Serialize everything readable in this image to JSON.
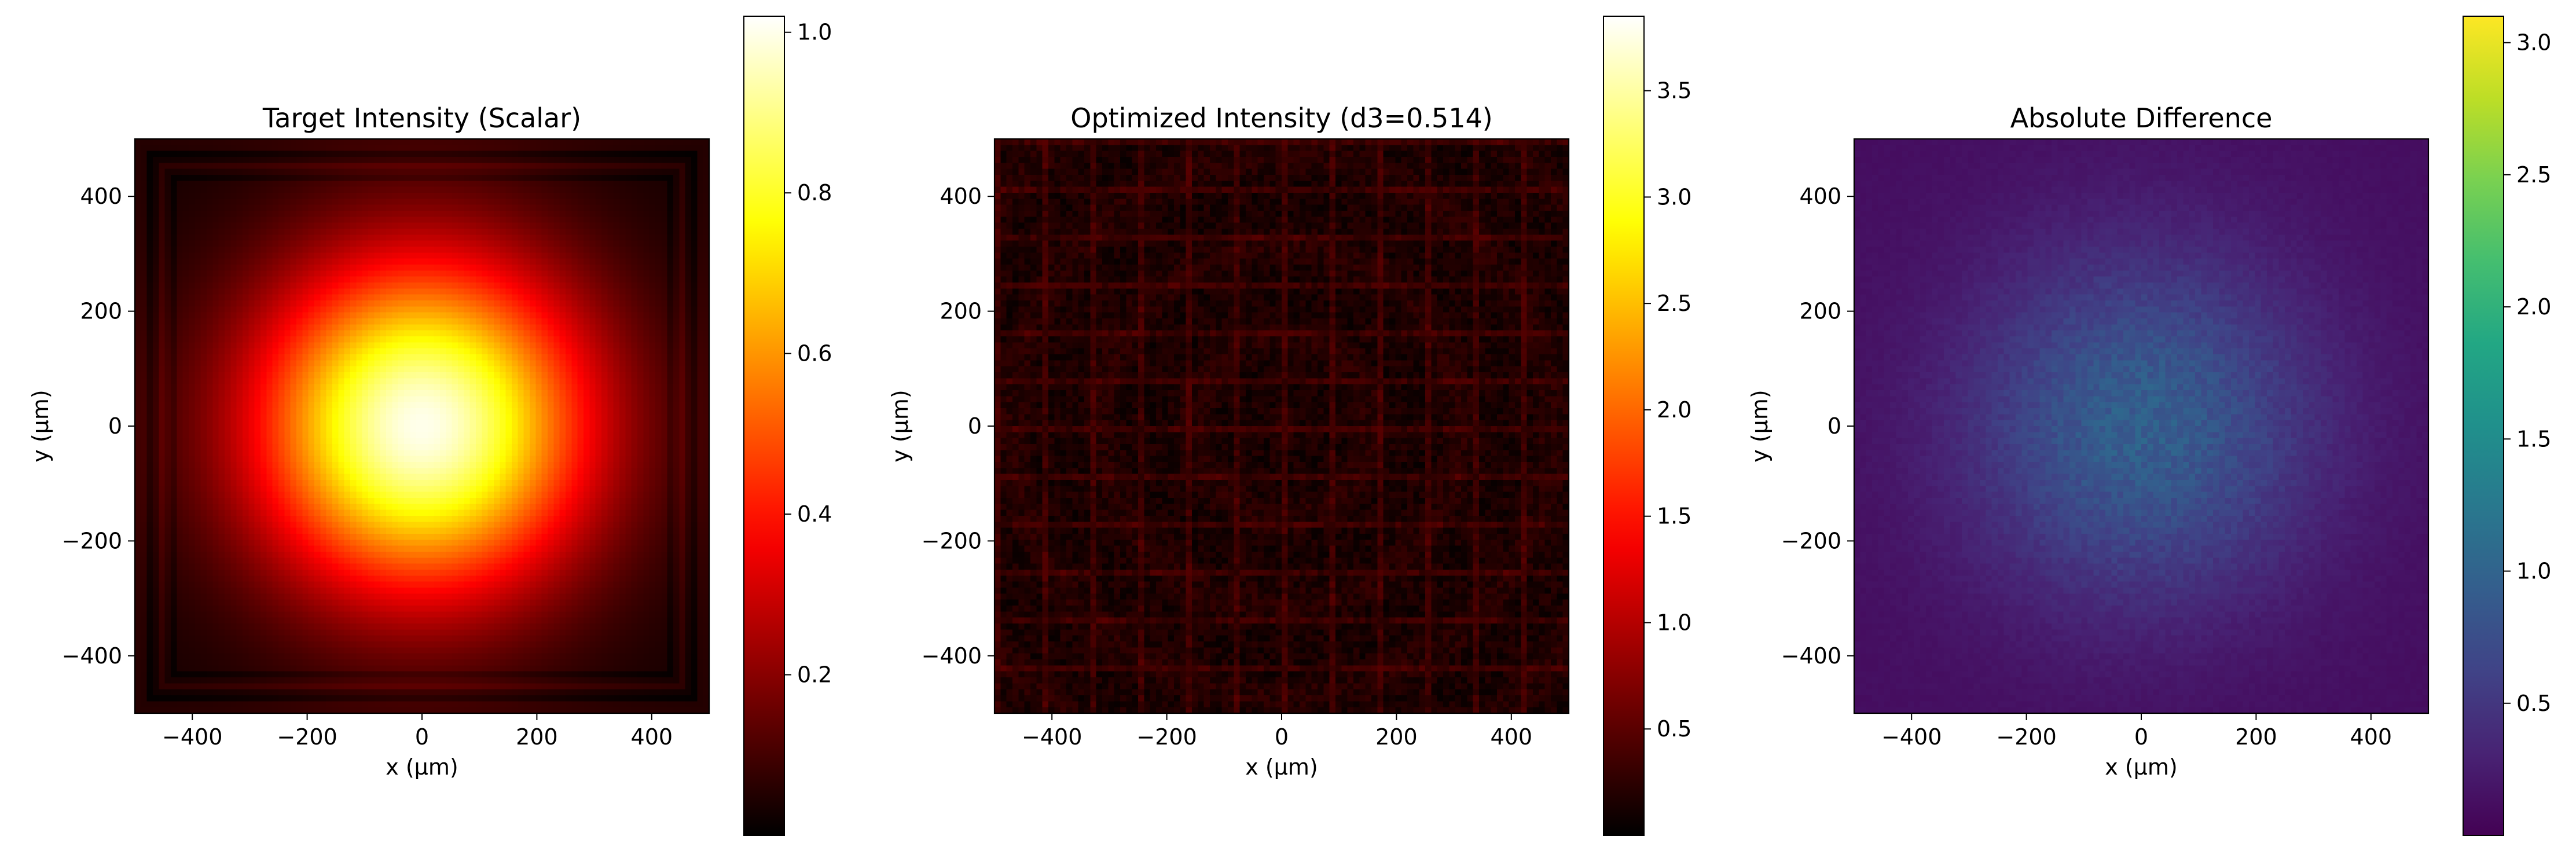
{
  "chart_data": [
    {
      "type": "heatmap",
      "title": "Target Intensity (Scalar)",
      "xlabel": "x (µm)",
      "ylabel": "y (µm)",
      "xlim": [
        -500,
        500
      ],
      "ylim": [
        -500,
        500
      ],
      "xticks": [
        -400,
        -200,
        0,
        200,
        400
      ],
      "yticks": [
        -400,
        -200,
        0,
        200,
        400
      ],
      "xtick_labels": [
        "−400",
        "−200",
        "0",
        "200",
        "400"
      ],
      "ytick_labels": [
        "−400",
        "−200",
        "0",
        "200",
        "400"
      ],
      "colormap": "hot",
      "colorbar": {
        "range": [
          0.0,
          1.02
        ],
        "ticks": [
          0.2,
          0.4,
          0.6,
          0.8,
          1.0
        ],
        "tick_labels": [
          "0.2",
          "0.4",
          "0.6",
          "0.8",
          "1.0"
        ]
      },
      "pattern": {
        "kind": "gaussian",
        "peak": 1.0,
        "sigma_um": 200,
        "background": 0.03,
        "edge_fringes": true
      }
    },
    {
      "type": "heatmap",
      "title": "Optimized Intensity (d3=0.514)",
      "xlabel": "x (µm)",
      "ylabel": "y (µm)",
      "xlim": [
        -500,
        500
      ],
      "ylim": [
        -500,
        500
      ],
      "xticks": [
        -400,
        -200,
        0,
        200,
        400
      ],
      "yticks": [
        -400,
        -200,
        0,
        200,
        400
      ],
      "xtick_labels": [
        "−400",
        "−200",
        "0",
        "200",
        "400"
      ],
      "ytick_labels": [
        "−400",
        "−200",
        "0",
        "200",
        "400"
      ],
      "colormap": "hot",
      "colorbar": {
        "range": [
          0.0,
          3.85
        ],
        "ticks": [
          0.5,
          1.0,
          1.5,
          2.0,
          2.5,
          3.0,
          3.5
        ],
        "tick_labels": [
          "0.5",
          "1.0",
          "1.5",
          "2.0",
          "2.5",
          "3.0",
          "3.5"
        ]
      },
      "pattern": {
        "kind": "speckle",
        "mean": 0.12,
        "max_visible": 1.3,
        "grid_lines": true
      }
    },
    {
      "type": "heatmap",
      "title": "Absolute Difference",
      "xlabel": "x (µm)",
      "ylabel": "y (µm)",
      "xlim": [
        -500,
        500
      ],
      "ylim": [
        -500,
        500
      ],
      "xticks": [
        -400,
        -200,
        0,
        200,
        400
      ],
      "yticks": [
        -400,
        -200,
        0,
        200,
        400
      ],
      "xtick_labels": [
        "−400",
        "−200",
        "0",
        "200",
        "400"
      ],
      "ytick_labels": [
        "−400",
        "−200",
        "0",
        "200",
        "400"
      ],
      "colormap": "viridis",
      "colorbar": {
        "range": [
          0.0,
          3.1
        ],
        "ticks": [
          0.5,
          1.0,
          1.5,
          2.0,
          2.5,
          3.0
        ],
        "tick_labels": [
          "0.5",
          "1.0",
          "1.5",
          "2.0",
          "2.5",
          "3.0"
        ]
      },
      "pattern": {
        "kind": "gaussian",
        "peak": 0.95,
        "sigma_um": 210,
        "background": 0.12,
        "speckle": true
      }
    }
  ]
}
